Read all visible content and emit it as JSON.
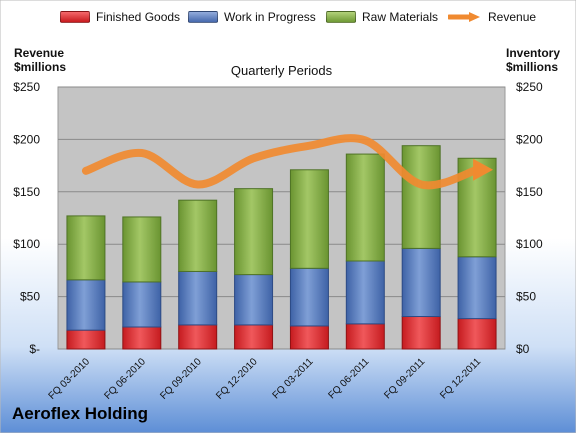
{
  "legend": {
    "finished": "Finished Goods",
    "wip": "Work in Progress",
    "raw": "Raw Materials",
    "revenue": "Revenue"
  },
  "axes": {
    "left_title_line1": "Revenue",
    "left_title_line2": "$millions",
    "right_title_line1": "Inventory",
    "right_title_line2": "$millions",
    "plot_title": "Quarterly Periods"
  },
  "footer": {
    "company": "Aeroflex Holding"
  },
  "colors": {
    "finished": "#e8262a",
    "wip": "#5b7fc0",
    "raw": "#8cb24a",
    "revenue": "#f08a30",
    "plot_bg": "#c4c4c4"
  },
  "chart_data": {
    "type": "bar",
    "stacked": true,
    "title": "Quarterly Periods",
    "categories": [
      "FQ 03-2010",
      "FQ 06-2010",
      "FQ 09-2010",
      "FQ 12-2010",
      "FQ 03-2011",
      "FQ 06-2011",
      "FQ 09-2011",
      "FQ 12-2011"
    ],
    "series": [
      {
        "name": "Finished Goods",
        "values": [
          18,
          21,
          23,
          23,
          22,
          24,
          31,
          29
        ]
      },
      {
        "name": "Work in Progress",
        "values": [
          48,
          43,
          51,
          48,
          55,
          60,
          65,
          59
        ]
      },
      {
        "name": "Raw Materials",
        "values": [
          61,
          62,
          68,
          82,
          94,
          102,
          98,
          94
        ]
      }
    ],
    "line_series": {
      "name": "Revenue",
      "values": [
        170,
        187,
        157,
        182,
        194,
        199,
        157,
        171
      ]
    },
    "ylim": [
      0,
      250
    ],
    "y_ticks": [
      0,
      50,
      100,
      150,
      200,
      250
    ],
    "y_tick_labels": [
      "$-",
      "$50",
      "$100",
      "$150",
      "$200",
      "$250"
    ],
    "y2_tick_labels": [
      "$0",
      "$50",
      "$100",
      "$150",
      "$200",
      "$250"
    ],
    "grid": true,
    "legend_position": "top"
  }
}
